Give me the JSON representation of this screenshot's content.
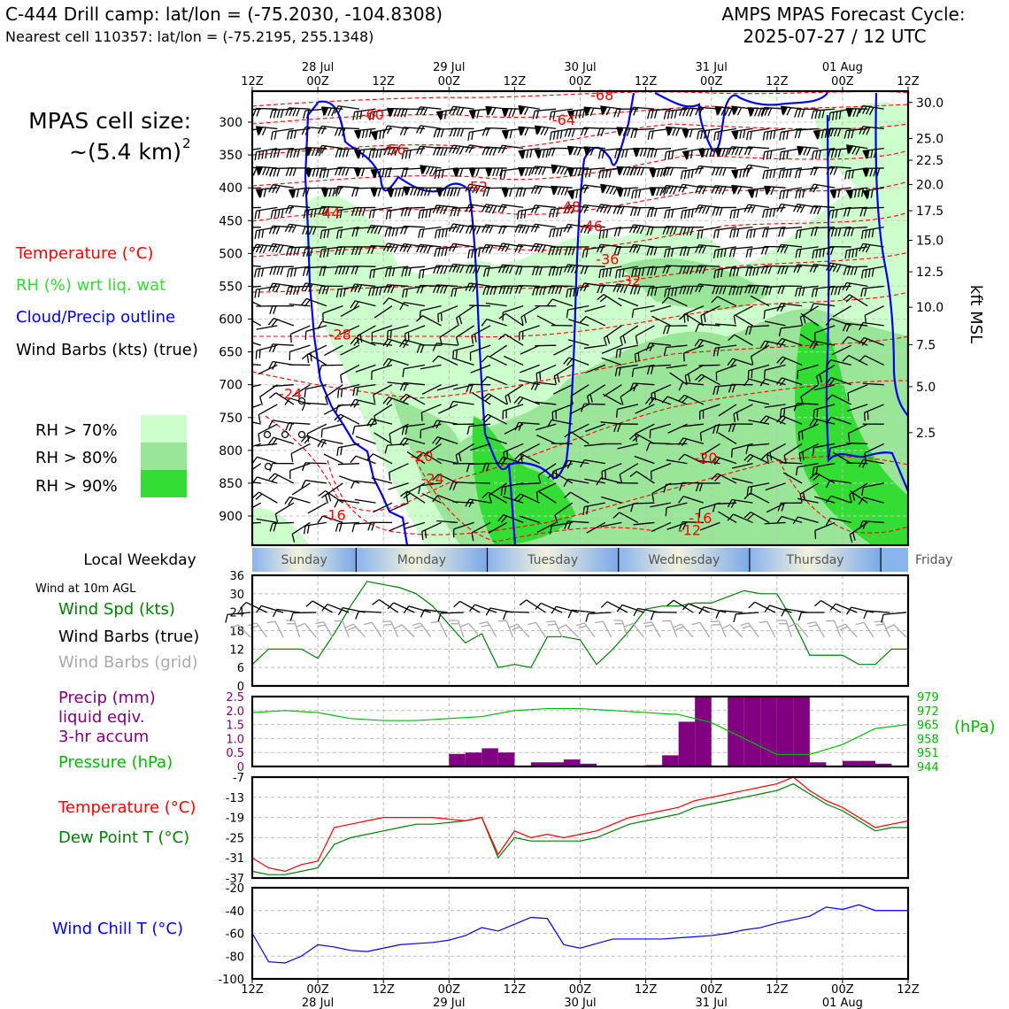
{
  "header": {
    "title_left": "C-444 Drill camp: lat/lon = (-75.2030, -104.8308)",
    "subtitle_left": "Nearest cell 110357: lat/lon = (-75.2195, 255.1348)",
    "title_right_1": "AMPS MPAS Forecast Cycle:",
    "title_right_2": "2025-07-27 / 12 UTC"
  },
  "legend": {
    "cell_size_1": "MPAS cell size:",
    "cell_size_2": "~(5.4 km)",
    "cell_size_exp": "2",
    "temperature": "Temperature (°C)",
    "rh": "RH (%) wrt liq. wat",
    "cloud": "Cloud/Precip outline",
    "barbs": "Wind Barbs (kts) (true)",
    "rh70": "RH > 70%",
    "rh80": "RH > 80%",
    "rh90": "RH > 90%"
  },
  "colors": {
    "rh70": "#ccffcc",
    "rh80": "#99e699",
    "rh90": "#33dd33",
    "temp": "#ff0000",
    "cloud": "#0000ee",
    "wind_spd": "#008000",
    "grid_barb": "#aaaaaa",
    "precip": "#800080",
    "pressure": "#00bb00",
    "dewpoint": "#008000",
    "windchill": "#0000ff"
  },
  "time_axis": {
    "top_labels": [
      {
        "t": 0,
        "line1": "",
        "line2": "12Z"
      },
      {
        "t": 12,
        "line1": "28 Jul",
        "line2": "00Z"
      },
      {
        "t": 24,
        "line1": "",
        "line2": "12Z"
      },
      {
        "t": 36,
        "line1": "29 Jul",
        "line2": "00Z"
      },
      {
        "t": 48,
        "line1": "",
        "line2": "12Z"
      },
      {
        "t": 60,
        "line1": "30 Jul",
        "line2": "00Z"
      },
      {
        "t": 72,
        "line1": "",
        "line2": "12Z"
      },
      {
        "t": 84,
        "line1": "31 Jul",
        "line2": "00Z"
      },
      {
        "t": 96,
        "line1": "",
        "line2": "12Z"
      },
      {
        "t": 108,
        "line1": "01 Aug",
        "line2": "00Z"
      },
      {
        "t": 120,
        "line1": "",
        "line2": "12Z"
      }
    ],
    "bottom_labels": [
      {
        "t": 0,
        "line1": "12Z",
        "line2": ""
      },
      {
        "t": 12,
        "line1": "00Z",
        "line2": "28 Jul"
      },
      {
        "t": 24,
        "line1": "12Z",
        "line2": ""
      },
      {
        "t": 36,
        "line1": "00Z",
        "line2": "29 Jul"
      },
      {
        "t": 48,
        "line1": "12Z",
        "line2": ""
      },
      {
        "t": 60,
        "line1": "00Z",
        "line2": "30 Jul"
      },
      {
        "t": 72,
        "line1": "12Z",
        "line2": ""
      },
      {
        "t": 84,
        "line1": "00Z",
        "line2": "31 Jul"
      },
      {
        "t": 96,
        "line1": "12Z",
        "line2": ""
      },
      {
        "t": 108,
        "line1": "00Z",
        "line2": "01 Aug"
      },
      {
        "t": 120,
        "line1": "12Z",
        "line2": ""
      }
    ]
  },
  "weekday": {
    "label": "Local Weekday",
    "days": [
      {
        "name": "Sunday",
        "t0": 0,
        "t1": 19
      },
      {
        "name": "Monday",
        "t0": 19,
        "t1": 43
      },
      {
        "name": "Tuesday",
        "t0": 43,
        "t1": 67
      },
      {
        "name": "Wednesday",
        "t0": 67,
        "t1": 91
      },
      {
        "name": "Thursday",
        "t0": 91,
        "t1": 115
      },
      {
        "name": "Friday",
        "t0": 115,
        "t1": 120
      }
    ]
  },
  "chart_data": [
    {
      "type": "heatmap",
      "name": "cross-section",
      "ylabel_left": "",
      "ylabel_right": "kft MSL",
      "pressure_ticks": [
        300,
        350,
        400,
        450,
        500,
        550,
        600,
        650,
        700,
        750,
        800,
        850,
        900
      ],
      "kft_ticks": [
        {
          "label": "30.0",
          "p": 270
        },
        {
          "label": "25.0",
          "p": 325
        },
        {
          "label": "22.5",
          "p": 358
        },
        {
          "label": "20.0",
          "p": 395
        },
        {
          "label": "17.5",
          "p": 435
        },
        {
          "label": "15.0",
          "p": 480
        },
        {
          "label": "12.5",
          "p": 528
        },
        {
          "label": "10.0",
          "p": 582
        },
        {
          "label": "7.5",
          "p": 639
        },
        {
          "label": "5.0",
          "p": 703
        },
        {
          "label": "2.5",
          "p": 773
        }
      ],
      "temperature_labels": [
        {
          "text": "-60",
          "t": 22,
          "p": 290
        },
        {
          "text": "-56",
          "t": 26,
          "p": 343
        },
        {
          "text": "-52",
          "t": 41,
          "p": 400
        },
        {
          "text": "-44",
          "t": 14,
          "p": 440
        },
        {
          "text": "-64",
          "t": 57,
          "p": 298
        },
        {
          "text": "-68",
          "t": 64,
          "p": 260
        },
        {
          "text": "-48",
          "t": 58,
          "p": 430
        },
        {
          "text": "-46",
          "t": 62,
          "p": 460
        },
        {
          "text": "-36",
          "t": 65,
          "p": 510
        },
        {
          "text": "-32",
          "t": 69,
          "p": 543
        },
        {
          "text": "-28",
          "t": 16,
          "p": 625
        },
        {
          "text": "-24",
          "t": 7,
          "p": 715
        },
        {
          "text": "-20",
          "t": 31,
          "p": 810
        },
        {
          "text": "-24",
          "t": 33,
          "p": 845
        },
        {
          "text": "-16",
          "t": 15,
          "p": 900
        },
        {
          "text": "-20",
          "t": 83,
          "p": 813
        },
        {
          "text": "-16",
          "t": 82,
          "p": 905
        },
        {
          "text": "-12",
          "t": 80,
          "p": 923
        }
      ]
    },
    {
      "type": "line",
      "name": "wind",
      "label_top": "Wind at 10m AGL",
      "label_spd": "Wind Spd (kts)",
      "label_barbs": "Wind Barbs (true)",
      "label_grid": "Wind Barbs (grid)",
      "ylim": [
        0,
        36
      ],
      "yticks": [
        0,
        6,
        12,
        18,
        24,
        30,
        36
      ],
      "x": [
        0,
        3,
        6,
        9,
        12,
        15,
        18,
        21,
        24,
        27,
        30,
        33,
        36,
        39,
        42,
        45,
        48,
        51,
        54,
        57,
        60,
        63,
        66,
        69,
        72,
        75,
        78,
        81,
        84,
        87,
        90,
        93,
        96,
        99,
        102,
        105,
        108,
        111,
        114,
        117,
        120
      ],
      "values": [
        7,
        12,
        12,
        12,
        9,
        17,
        26,
        34,
        33,
        32,
        30,
        26,
        20,
        14,
        17,
        6,
        7,
        6,
        16,
        16,
        15,
        7,
        12,
        18,
        25,
        26,
        26,
        27,
        27,
        29,
        31,
        30,
        30,
        21,
        10,
        10,
        10,
        7,
        7,
        12,
        12
      ]
    },
    {
      "type": "bar",
      "name": "precip_pressure",
      "label_precip": "Precip (mm)\nliquid eqiv.\n3-hr accum",
      "label_pressure": "Pressure (hPa)",
      "ylabel_right": "(hPa)",
      "ylim": [
        0,
        2.5
      ],
      "yticks": [
        "0",
        "0.5",
        "1.0",
        "1.5",
        "2.0",
        "2.5"
      ],
      "pressure_ticks": [
        "944",
        "951",
        "958",
        "965",
        "972",
        "979"
      ],
      "pressure_range": [
        944,
        979
      ],
      "bars_x": [
        36,
        39,
        42,
        45,
        48,
        51,
        54,
        57,
        60,
        63,
        66,
        69,
        72,
        75,
        78,
        81,
        84,
        87,
        90,
        93,
        96,
        99,
        102,
        105,
        108,
        111,
        114,
        117
      ],
      "bars_y": [
        0.45,
        0.5,
        0.65,
        0.5,
        0,
        0.15,
        0.15,
        0.25,
        0.1,
        0,
        0,
        0,
        0.05,
        0.4,
        1.6,
        2.5,
        0,
        2.5,
        2.5,
        2.5,
        2.5,
        2.5,
        0.15,
        0,
        0.2,
        0.2,
        0.1,
        0
      ],
      "pressure_x": [
        0,
        6,
        12,
        18,
        24,
        30,
        36,
        42,
        48,
        54,
        60,
        66,
        72,
        78,
        84,
        90,
        96,
        102,
        108,
        114,
        120
      ],
      "pressure_y": [
        971,
        972,
        971,
        968,
        967,
        967,
        968,
        969,
        972,
        973,
        973,
        972,
        971,
        970,
        966,
        958,
        950,
        950,
        955,
        963,
        965
      ]
    },
    {
      "type": "line",
      "name": "temperature",
      "label_temp": "Temperature (°C)",
      "label_dew": "Dew Point T (°C)",
      "ylim": [
        -37,
        -7
      ],
      "yticks": [
        -37,
        -31,
        -25,
        -19,
        -13,
        -7
      ],
      "x": [
        0,
        3,
        6,
        9,
        12,
        15,
        18,
        21,
        24,
        27,
        30,
        33,
        36,
        39,
        42,
        45,
        48,
        51,
        54,
        57,
        60,
        63,
        66,
        69,
        72,
        75,
        78,
        81,
        84,
        87,
        90,
        93,
        96,
        99,
        102,
        105,
        108,
        111,
        114,
        117,
        120
      ],
      "temp": [
        -31,
        -34,
        -35,
        -33,
        -32,
        -22,
        -21,
        -20,
        -19,
        -19,
        -19,
        -19,
        -19.5,
        -20,
        -19,
        -30,
        -23,
        -25,
        -24,
        -25,
        -24,
        -23,
        -21,
        -19,
        -18,
        -17,
        -16,
        -14,
        -13,
        -12,
        -11,
        -10,
        -9,
        -7,
        -11,
        -14,
        -16,
        -19,
        -22,
        -21,
        -20
      ],
      "dew": [
        -35,
        -36,
        -36,
        -35,
        -34,
        -27,
        -25,
        -24,
        -23,
        -22,
        -21,
        -21,
        -20.5,
        -20,
        -19,
        -31,
        -25,
        -26,
        -26,
        -26,
        -26,
        -25,
        -23,
        -21,
        -20,
        -19,
        -18,
        -16,
        -15,
        -14,
        -13,
        -12,
        -11,
        -9,
        -12,
        -15,
        -17,
        -20,
        -23,
        -22,
        -22
      ]
    },
    {
      "type": "line",
      "name": "windchill",
      "label": "Wind Chill T (°C)",
      "ylim": [
        -100,
        -20
      ],
      "yticks": [
        -100,
        -80,
        -60,
        -40,
        -20
      ],
      "x": [
        0,
        3,
        6,
        9,
        12,
        15,
        18,
        21,
        24,
        27,
        30,
        33,
        36,
        39,
        42,
        45,
        48,
        51,
        54,
        57,
        60,
        63,
        66,
        69,
        72,
        75,
        78,
        81,
        84,
        87,
        90,
        93,
        96,
        99,
        102,
        105,
        108,
        111,
        114,
        117,
        120
      ],
      "values": [
        -60,
        -85,
        -86,
        -80,
        -70,
        -72,
        -75,
        -76,
        -73,
        -70,
        -69,
        -68,
        -66,
        -62,
        -55,
        -58,
        -52,
        -46,
        -47,
        -70,
        -73,
        -69,
        -65,
        -65,
        -65,
        -65,
        -64,
        -63,
        -62,
        -60,
        -57,
        -55,
        -51,
        -48,
        -45,
        -37,
        -39,
        -35,
        -40,
        -40,
        -40
      ]
    }
  ]
}
